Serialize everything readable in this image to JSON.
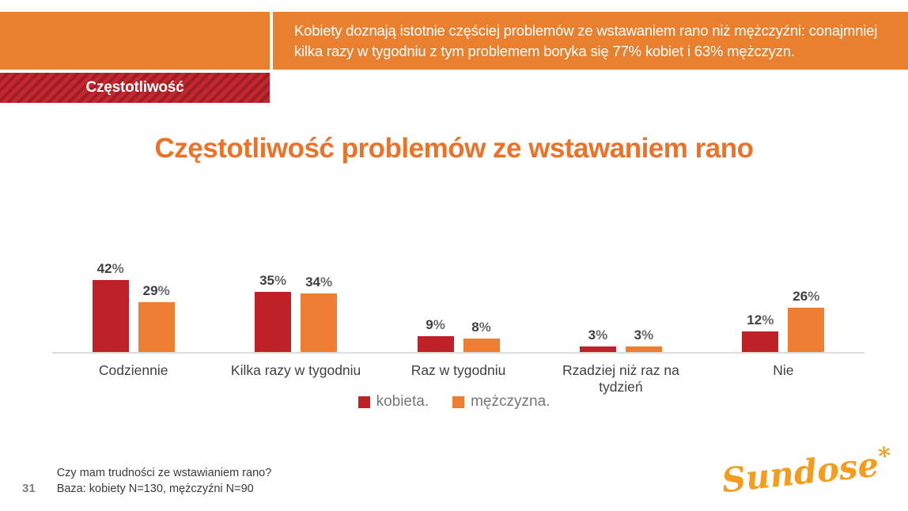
{
  "slide": {
    "header_callout": "Kobiety doznają istotnie częściej problemów ze wstawaniem rano niż mężczyźni: conajmniej kilka razy w tygodniu z tym problemem boryka się 77% kobiet i 63% mężczyzn.",
    "section_tab": "Częstotliwość",
    "title": "Częstotliwość problemów ze wstawaniem rano",
    "page_number": "31",
    "footnote_line1": "Czy mam trudności ze wstawianiem rano?",
    "footnote_line2": "Baza: kobiety N=130, mężczyźni N=90",
    "logo_text": "Sundose",
    "logo_mark": "*"
  },
  "colors": {
    "header_orange": "#E8802F",
    "tab_red": "#C4272E",
    "tab_red_dark": "#9E1E26",
    "title_orange": "#ED7228",
    "axis_line": "#DCDCDC",
    "series_red": "#BE2126",
    "series_orange": "#ED7D31",
    "logo_orange": "#F49C1E"
  },
  "chart_data": {
    "type": "bar",
    "title": "Częstotliwość problemów ze wstawaniem rano",
    "categories": [
      "Codziennie",
      "Kilka razy w tygodniu",
      "Raz w tygodniu",
      "Rzadziej niż raz na tydzień",
      "Nie"
    ],
    "series": [
      {
        "name": "kobieta.",
        "color": "#BE2126",
        "values": [
          42,
          35,
          9,
          3,
          12
        ]
      },
      {
        "name": "mężczyzna.",
        "color": "#ED7D31",
        "values": [
          29,
          34,
          8,
          3,
          26
        ]
      }
    ],
    "value_suffix": "%",
    "xlabel": "",
    "ylabel": "",
    "ylim": [
      0,
      45
    ],
    "grid": false,
    "legend_position": "bottom",
    "data_labels": true
  }
}
